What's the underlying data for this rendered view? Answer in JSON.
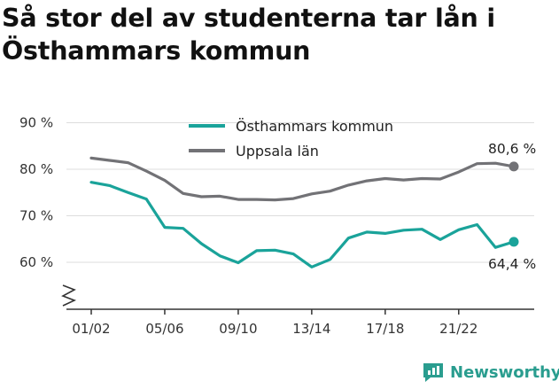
{
  "title": "Så stor del av studenterna tar lån i Östhammars kommun",
  "brand": {
    "name": "Newsworthy",
    "logo_icon": "newsworthy-chart-logo"
  },
  "colors": {
    "teal": "#1aa39a",
    "gray": "#727276",
    "grid": "#dddddd",
    "brand": "#2a9d8f"
  },
  "chart_data": {
    "type": "line",
    "title": "Så stor del av studenterna tar lån i Östhammars kommun",
    "xlabel": "",
    "ylabel": "",
    "x": [
      "01/02",
      "02/03",
      "03/04",
      "04/05",
      "05/06",
      "06/07",
      "07/08",
      "08/09",
      "09/10",
      "10/11",
      "11/12",
      "12/13",
      "13/14",
      "14/15",
      "15/16",
      "16/17",
      "17/18",
      "18/19",
      "19/20",
      "20/21",
      "21/22",
      "22/23",
      "23/24",
      "24/25"
    ],
    "x_tick_labels": [
      "01/02",
      "05/06",
      "09/10",
      "13/14",
      "17/18",
      "21/22"
    ],
    "y_ticks": [
      60,
      70,
      80,
      90
    ],
    "y_tick_labels": [
      "60 %",
      "70 %",
      "80 %",
      "90 %"
    ],
    "ylim": [
      50,
      90
    ],
    "y_axis_break": true,
    "grid": true,
    "legend_position": "top-center",
    "series": [
      {
        "name": "Östhammars kommun",
        "color": "#1aa39a",
        "values": [
          77.2,
          76.5,
          75.0,
          73.6,
          67.5,
          67.3,
          64.0,
          61.4,
          59.9,
          62.5,
          62.6,
          61.8,
          59.0,
          60.6,
          65.2,
          66.5,
          66.2,
          66.9,
          67.1,
          64.9,
          67.0,
          68.1,
          63.2,
          64.4
        ],
        "end_label": "64,4 %"
      },
      {
        "name": "Uppsala län",
        "color": "#727276",
        "values": [
          82.4,
          81.9,
          81.4,
          79.6,
          77.6,
          74.8,
          74.1,
          74.2,
          73.5,
          73.5,
          73.4,
          73.7,
          74.7,
          75.3,
          76.6,
          77.5,
          78.0,
          77.7,
          78.0,
          77.9,
          79.4,
          81.2,
          81.3,
          80.6
        ],
        "end_label": "80,6 %"
      }
    ]
  }
}
